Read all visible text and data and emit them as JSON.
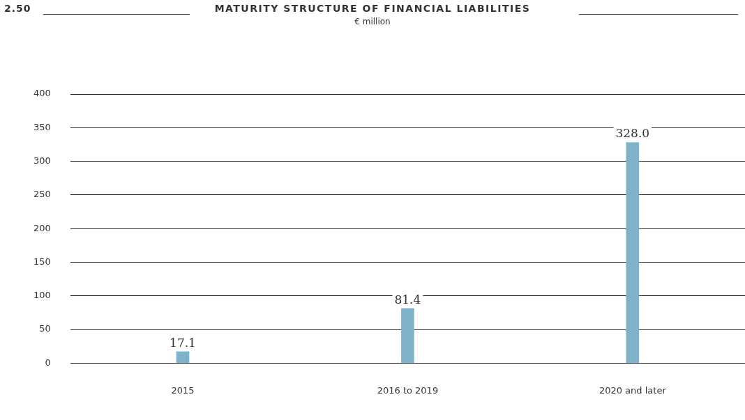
{
  "chart_data": {
    "type": "bar",
    "title": "MATURITY STRUCTURE OF FINANCIAL LIABILITIES",
    "subtitle": "€ million",
    "annotations": [
      "2.50"
    ],
    "categories": [
      "2015",
      "2016 to 2019",
      "2020 and later"
    ],
    "values": [
      17.1,
      81.4,
      328.0
    ],
    "color": "#7fb3cc",
    "value_labels": [
      "17.1",
      "81.4",
      "328.0"
    ],
    "ylim": [
      0,
      400
    ],
    "yticks": [
      0,
      50,
      100,
      150,
      200,
      250,
      300,
      350,
      400
    ],
    "grid": "y",
    "legend": false
  }
}
